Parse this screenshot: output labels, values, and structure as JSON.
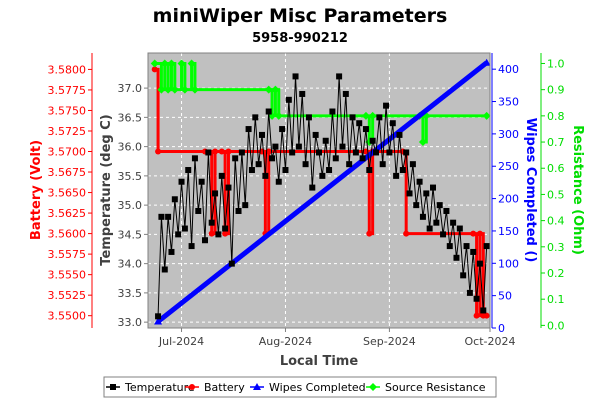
{
  "chart_data": {
    "type": "line",
    "title": "miniWiper Misc Parameters",
    "subtitle": "5958-990212",
    "xlabel": "Local Time",
    "x_ticks": [
      "Jul-2024",
      "Aug-2024",
      "Sep-2024",
      "Oct-2024"
    ],
    "x_range": [
      "2024-06-21",
      "2024-10-01"
    ],
    "grid": true,
    "legend_position": "bottom",
    "colors": {
      "plot_bg": "#c0c0c0",
      "grid": "#ffffff",
      "temperature": "#000000",
      "battery": "#ff0000",
      "wipes": "#0000ff",
      "resistance": "#00ff00"
    },
    "axes": {
      "battery": {
        "label": "Battery (Volt)",
        "range": [
          3.5485,
          3.582
        ],
        "ticks": [
          "3.5500",
          "3.5525",
          "3.5550",
          "3.5575",
          "3.5600",
          "3.5625",
          "3.5650",
          "3.5675",
          "3.5700",
          "3.5725",
          "3.5750",
          "3.5775",
          "3.5800"
        ]
      },
      "temperature": {
        "label": "Temperature (deg C)",
        "range": [
          32.9,
          37.6
        ],
        "ticks": [
          "33.0",
          "33.5",
          "34.0",
          "34.5",
          "35.0",
          "35.5",
          "36.0",
          "36.5",
          "37.0"
        ]
      },
      "wipes": {
        "label": "Wipes Completed ()",
        "range": [
          0,
          425
        ],
        "ticks": [
          "0",
          "50",
          "100",
          "150",
          "200",
          "250",
          "300",
          "350",
          "400"
        ]
      },
      "resistance": {
        "label": "Resistance (Ohm)",
        "range": [
          -0.01,
          1.04
        ],
        "ticks": [
          "0.0",
          "0.1",
          "0.2",
          "0.3",
          "0.4",
          "0.5",
          "0.6",
          "0.7",
          "0.8",
          "0.9",
          "1.0"
        ]
      }
    },
    "series": [
      {
        "name": "Temperature",
        "axis": "temperature",
        "marker": "square",
        "points": [
          [
            "2024-06-24",
            33.1
          ],
          [
            "2024-06-25",
            34.8
          ],
          [
            "2024-06-26",
            33.9
          ],
          [
            "2024-06-27",
            34.8
          ],
          [
            "2024-06-28",
            34.2
          ],
          [
            "2024-06-29",
            35.1
          ],
          [
            "2024-06-30",
            34.5
          ],
          [
            "2024-07-01",
            35.4
          ],
          [
            "2024-07-02",
            34.6
          ],
          [
            "2024-07-03",
            35.6
          ],
          [
            "2024-07-04",
            34.3
          ],
          [
            "2024-07-05",
            35.8
          ],
          [
            "2024-07-06",
            34.9
          ],
          [
            "2024-07-07",
            35.4
          ],
          [
            "2024-07-08",
            34.4
          ],
          [
            "2024-07-09",
            35.9
          ],
          [
            "2024-07-10",
            34.7
          ],
          [
            "2024-07-11",
            35.2
          ],
          [
            "2024-07-12",
            34.5
          ],
          [
            "2024-07-13",
            35.5
          ],
          [
            "2024-07-14",
            34.6
          ],
          [
            "2024-07-15",
            35.3
          ],
          [
            "2024-07-16",
            34.0
          ],
          [
            "2024-07-17",
            35.8
          ],
          [
            "2024-07-18",
            34.9
          ],
          [
            "2024-07-19",
            35.9
          ],
          [
            "2024-07-20",
            35.0
          ],
          [
            "2024-07-21",
            36.3
          ],
          [
            "2024-07-22",
            35.6
          ],
          [
            "2024-07-23",
            36.5
          ],
          [
            "2024-07-24",
            35.7
          ],
          [
            "2024-07-25",
            36.2
          ],
          [
            "2024-07-26",
            35.5
          ],
          [
            "2024-07-27",
            36.6
          ],
          [
            "2024-07-28",
            35.8
          ],
          [
            "2024-07-29",
            36.0
          ],
          [
            "2024-07-30",
            35.4
          ],
          [
            "2024-07-31",
            36.3
          ],
          [
            "2024-08-01",
            35.6
          ],
          [
            "2024-08-02",
            36.8
          ],
          [
            "2024-08-03",
            35.9
          ],
          [
            "2024-08-04",
            37.2
          ],
          [
            "2024-08-05",
            36.0
          ],
          [
            "2024-08-06",
            36.9
          ],
          [
            "2024-08-07",
            35.7
          ],
          [
            "2024-08-08",
            36.5
          ],
          [
            "2024-08-09",
            35.3
          ],
          [
            "2024-08-10",
            36.2
          ],
          [
            "2024-08-11",
            35.9
          ],
          [
            "2024-08-12",
            35.5
          ],
          [
            "2024-08-13",
            36.1
          ],
          [
            "2024-08-14",
            35.6
          ],
          [
            "2024-08-15",
            36.6
          ],
          [
            "2024-08-16",
            35.8
          ],
          [
            "2024-08-17",
            37.2
          ],
          [
            "2024-08-18",
            36.0
          ],
          [
            "2024-08-19",
            36.9
          ],
          [
            "2024-08-20",
            35.7
          ],
          [
            "2024-08-21",
            36.5
          ],
          [
            "2024-08-22",
            35.9
          ],
          [
            "2024-08-23",
            36.4
          ],
          [
            "2024-08-24",
            35.8
          ],
          [
            "2024-08-25",
            36.3
          ],
          [
            "2024-08-26",
            35.6
          ],
          [
            "2024-08-27",
            36.1
          ],
          [
            "2024-08-28",
            35.9
          ],
          [
            "2024-08-29",
            36.5
          ],
          [
            "2024-08-30",
            35.7
          ],
          [
            "2024-08-31",
            36.7
          ],
          [
            "2024-09-01",
            35.9
          ],
          [
            "2024-09-02",
            36.4
          ],
          [
            "2024-09-03",
            35.5
          ],
          [
            "2024-09-04",
            36.2
          ],
          [
            "2024-09-05",
            35.6
          ],
          [
            "2024-09-06",
            35.9
          ],
          [
            "2024-09-07",
            35.2
          ],
          [
            "2024-09-08",
            35.7
          ],
          [
            "2024-09-09",
            35.0
          ],
          [
            "2024-09-10",
            35.4
          ],
          [
            "2024-09-11",
            34.8
          ],
          [
            "2024-09-12",
            35.2
          ],
          [
            "2024-09-13",
            34.6
          ],
          [
            "2024-09-14",
            35.3
          ],
          [
            "2024-09-15",
            34.7
          ],
          [
            "2024-09-16",
            35.0
          ],
          [
            "2024-09-17",
            34.5
          ],
          [
            "2024-09-18",
            34.9
          ],
          [
            "2024-09-19",
            34.3
          ],
          [
            "2024-09-20",
            34.7
          ],
          [
            "2024-09-21",
            34.1
          ],
          [
            "2024-09-22",
            34.6
          ],
          [
            "2024-09-23",
            33.8
          ],
          [
            "2024-09-24",
            34.3
          ],
          [
            "2024-09-25",
            33.5
          ],
          [
            "2024-09-26",
            34.2
          ],
          [
            "2024-09-27",
            33.4
          ],
          [
            "2024-09-28",
            34.0
          ],
          [
            "2024-09-29",
            33.2
          ],
          [
            "2024-09-30",
            34.3
          ]
        ]
      },
      {
        "name": "Battery",
        "axis": "battery",
        "marker": "circle",
        "points": [
          [
            "2024-06-23",
            3.58
          ],
          [
            "2024-06-24",
            3.57
          ],
          [
            "2024-07-08",
            3.57
          ],
          [
            "2024-07-10",
            3.56
          ],
          [
            "2024-07-11",
            3.57
          ],
          [
            "2024-07-13",
            3.57
          ],
          [
            "2024-07-14",
            3.56
          ],
          [
            "2024-07-15",
            3.57
          ],
          [
            "2024-07-25",
            3.57
          ],
          [
            "2024-07-26",
            3.56
          ],
          [
            "2024-07-27",
            3.57
          ],
          [
            "2024-08-25",
            3.57
          ],
          [
            "2024-08-26",
            3.56
          ],
          [
            "2024-08-27",
            3.57
          ],
          [
            "2024-09-05",
            3.57
          ],
          [
            "2024-09-06",
            3.56
          ],
          [
            "2024-09-26",
            3.56
          ],
          [
            "2024-09-27",
            3.55
          ],
          [
            "2024-09-28",
            3.56
          ],
          [
            "2024-09-29",
            3.55
          ],
          [
            "2024-09-30",
            3.55
          ]
        ]
      },
      {
        "name": "Wipes Completed",
        "axis": "wipes",
        "marker": "triangle",
        "points": [
          [
            "2024-06-24",
            10
          ],
          [
            "2024-09-30",
            410
          ]
        ]
      },
      {
        "name": "Source Resistance",
        "axis": "resistance",
        "marker": "diamond",
        "points": [
          [
            "2024-06-23",
            1.0
          ],
          [
            "2024-06-25",
            0.9
          ],
          [
            "2024-06-26",
            1.0
          ],
          [
            "2024-06-27",
            0.9
          ],
          [
            "2024-06-28",
            1.0
          ],
          [
            "2024-06-29",
            0.9
          ],
          [
            "2024-07-01",
            1.0
          ],
          [
            "2024-07-02",
            0.9
          ],
          [
            "2024-07-04",
            1.0
          ],
          [
            "2024-07-05",
            0.9
          ],
          [
            "2024-07-27",
            0.9
          ],
          [
            "2024-07-28",
            0.8
          ],
          [
            "2024-07-29",
            0.9
          ],
          [
            "2024-07-30",
            0.8
          ],
          [
            "2024-08-25",
            0.8
          ],
          [
            "2024-08-26",
            0.7
          ],
          [
            "2024-08-27",
            0.8
          ],
          [
            "2024-09-10",
            0.8
          ],
          [
            "2024-09-11",
            0.7
          ],
          [
            "2024-09-12",
            0.8
          ],
          [
            "2024-09-30",
            0.8
          ]
        ]
      }
    ]
  }
}
